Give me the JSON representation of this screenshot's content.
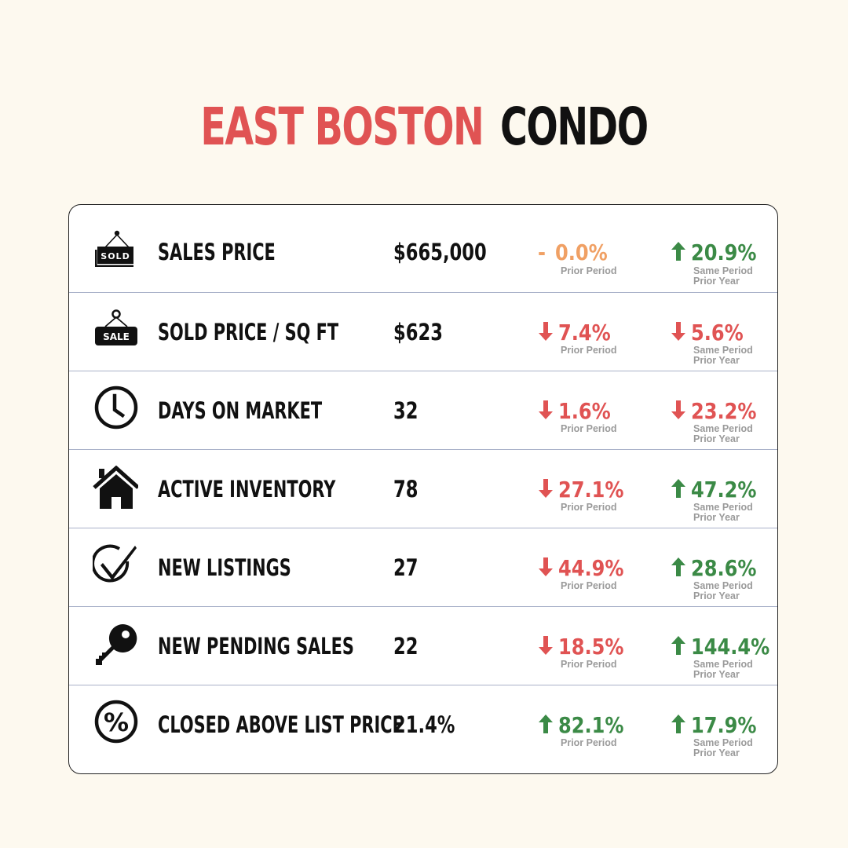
{
  "header": {
    "title_part1": "EAST BOSTON",
    "title_part2": "CONDO"
  },
  "colors": {
    "up": "#3b8a46",
    "down": "#e05353",
    "flat": "#f0a064",
    "title_accent": "#e05353",
    "background": "#fdf9ef"
  },
  "rows": [
    {
      "icon": "sold-sign-icon",
      "icon_text": "SOLD",
      "label": "SALES PRICE",
      "value": "$665,000",
      "prior_period": {
        "direction": "flat",
        "prefix": "-",
        "change": "0.0%",
        "caption": "Prior Period"
      },
      "prior_year": {
        "direction": "up",
        "change": "20.9%",
        "caption_line1": "Same Period",
        "caption_line2": "Prior Year"
      }
    },
    {
      "icon": "sale-sign-icon",
      "icon_text": "SALE",
      "label": "SOLD PRICE / SQ FT",
      "value": "$623",
      "prior_period": {
        "direction": "down",
        "change": "7.4%",
        "caption": "Prior Period"
      },
      "prior_year": {
        "direction": "down",
        "change": "5.6%",
        "caption_line1": "Same Period",
        "caption_line2": "Prior Year"
      }
    },
    {
      "icon": "clock-icon",
      "label": "DAYS ON MARKET",
      "value": "32",
      "prior_period": {
        "direction": "down",
        "change": "1.6%",
        "caption": "Prior Period"
      },
      "prior_year": {
        "direction": "down",
        "change": "23.2%",
        "caption_line1": "Same Period",
        "caption_line2": "Prior Year"
      }
    },
    {
      "icon": "house-icon",
      "label": "ACTIVE INVENTORY",
      "value": "78",
      "prior_period": {
        "direction": "down",
        "change": "27.1%",
        "caption": "Prior Period"
      },
      "prior_year": {
        "direction": "up",
        "change": "47.2%",
        "caption_line1": "Same Period",
        "caption_line2": "Prior Year"
      }
    },
    {
      "icon": "checkmark-circle-icon",
      "label": "NEW LISTINGS",
      "value": "27",
      "prior_period": {
        "direction": "down",
        "change": "44.9%",
        "caption": "Prior Period"
      },
      "prior_year": {
        "direction": "up",
        "change": "28.6%",
        "caption_line1": "Same Period",
        "caption_line2": "Prior Year"
      }
    },
    {
      "icon": "key-icon",
      "label": "NEW PENDING SALES",
      "value": "22",
      "prior_period": {
        "direction": "down",
        "change": "18.5%",
        "caption": "Prior Period"
      },
      "prior_year": {
        "direction": "up",
        "change": "144.4%",
        "caption_line1": "Same Period",
        "caption_line2": "Prior Year"
      }
    },
    {
      "icon": "percent-circle-icon",
      "label": "CLOSED ABOVE LIST PRICE",
      "value": "21.4%",
      "prior_period": {
        "direction": "up",
        "change": "82.1%",
        "caption": "Prior Period"
      },
      "prior_year": {
        "direction": "up",
        "change": "17.9%",
        "caption_line1": "Same Period",
        "caption_line2": "Prior Year"
      }
    }
  ]
}
